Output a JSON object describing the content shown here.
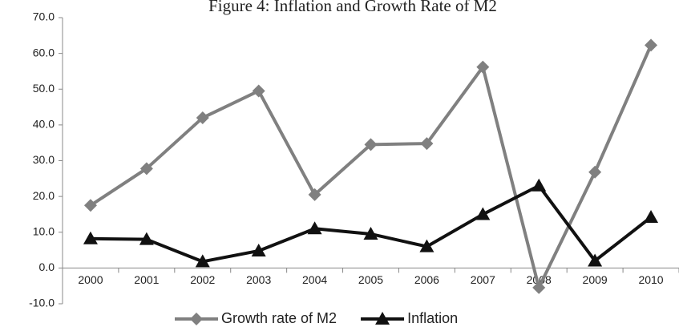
{
  "chart_data": {
    "type": "line",
    "title": "Figure 4: Inflation and Growth Rate of M2",
    "categories": [
      "2000",
      "2001",
      "2002",
      "2003",
      "2004",
      "2005",
      "2006",
      "2007",
      "2008",
      "2009",
      "2010"
    ],
    "series": [
      {
        "name": "Growth rate of M2",
        "color": "#808080",
        "marker": "diamond",
        "values": [
          17.5,
          27.8,
          42.0,
          49.5,
          20.5,
          34.5,
          34.8,
          56.2,
          -5.5,
          26.8,
          62.3
        ]
      },
      {
        "name": "Inflation",
        "color": "#111111",
        "marker": "triangle",
        "values": [
          8.2,
          8.0,
          1.8,
          4.8,
          11.0,
          9.5,
          6.0,
          15.0,
          23.0,
          2.0,
          14.2
        ]
      }
    ],
    "ylim": [
      -10,
      70
    ],
    "yticks": [
      {
        "value": -10,
        "label": "-10.0"
      },
      {
        "value": 0,
        "label": "0.0"
      },
      {
        "value": 10,
        "label": "10.0"
      },
      {
        "value": 20,
        "label": "20.0"
      },
      {
        "value": 30,
        "label": "30.0"
      },
      {
        "value": 40,
        "label": "40.0"
      },
      {
        "value": 50,
        "label": "50.0"
      },
      {
        "value": 60,
        "label": "60.0"
      },
      {
        "value": 70,
        "label": "70.0"
      }
    ],
    "grid": false,
    "legend": "bottom"
  }
}
